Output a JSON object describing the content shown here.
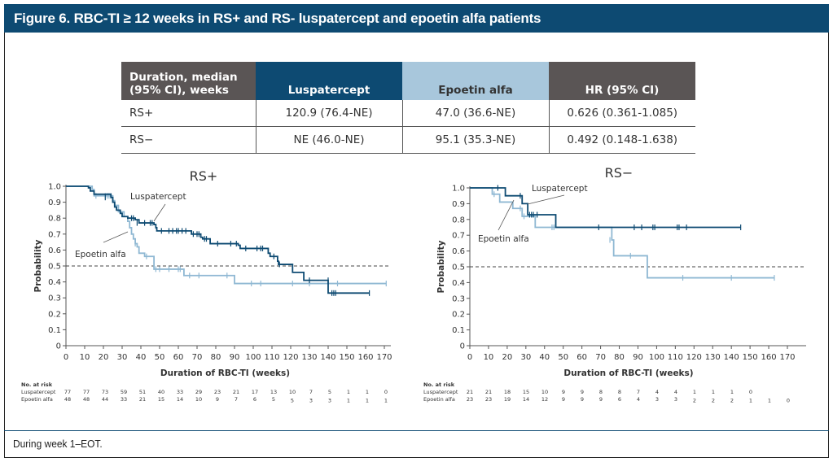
{
  "figure": {
    "title": "Figure 6. RBC-TI ≥ 12 weeks in RS+ and RS- luspatercept and epoetin alfa patients",
    "footnote": "During week 1–EOT."
  },
  "table": {
    "headers": [
      "Duration, median (95% CI), weeks",
      "Luspatercept",
      "Epoetin alfa",
      "HR (95% CI)"
    ],
    "header_colors": [
      "#5a5555",
      "#0d4a72",
      "#a8c7dc",
      "#5a5555"
    ],
    "rows": [
      [
        "RS+",
        "120.9 (76.4-NE)",
        "47.0 (36.6-NE)",
        "0.626 (0.361-1.085)"
      ],
      [
        "RS−",
        "NE (46.0-NE)",
        "95.1 (35.3-NE)",
        "0.492 (0.148-1.638)"
      ]
    ]
  },
  "colors": {
    "luspatercept": "#0d4a72",
    "epoetin": "#8fb8d3",
    "reference": "#444444",
    "axis": "#555555",
    "text": "#333333"
  },
  "chart_data": [
    {
      "type": "line",
      "subtype": "kaplan-meier",
      "title": "RS+",
      "xlabel": "Duration of RBC-TI (weeks)",
      "ylabel": "Probability",
      "xlim": [
        0,
        170
      ],
      "ylim": [
        0,
        1.0
      ],
      "x_ticks": [
        0,
        10,
        20,
        30,
        40,
        50,
        60,
        70,
        80,
        90,
        100,
        110,
        120,
        130,
        140,
        150,
        160,
        170
      ],
      "y_ticks": [
        0,
        0.1,
        0.2,
        0.3,
        0.4,
        0.5,
        0.6,
        0.7,
        0.8,
        0.9,
        1.0
      ],
      "y_tick_labels": [
        "0",
        "0.1",
        "0.2",
        "0.3",
        "0.4",
        "0.5",
        "0.6",
        "0.7",
        "0.8",
        "0.9",
        "1.0"
      ],
      "reference_line": 0.5,
      "annotations": [
        {
          "text": "Luspatercept",
          "series": "Luspatercept"
        },
        {
          "text": "Epoetin alfa",
          "series": "Epoetin alfa"
        }
      ],
      "series": [
        {
          "name": "Luspatercept",
          "steps": [
            [
              0,
              1.0
            ],
            [
              12,
              0.99
            ],
            [
              13,
              0.97
            ],
            [
              15,
              0.95
            ],
            [
              24,
              0.93
            ],
            [
              25,
              0.9
            ],
            [
              26,
              0.87
            ],
            [
              27,
              0.85
            ],
            [
              29,
              0.83
            ],
            [
              30,
              0.81
            ],
            [
              33,
              0.8
            ],
            [
              37,
              0.79
            ],
            [
              39,
              0.77
            ],
            [
              47,
              0.76
            ],
            [
              48,
              0.74
            ],
            [
              48.5,
              0.72
            ],
            [
              67,
              0.7
            ],
            [
              72,
              0.68
            ],
            [
              73,
              0.67
            ],
            [
              77,
              0.64
            ],
            [
              92,
              0.63
            ],
            [
              93,
              0.61
            ],
            [
              108,
              0.58
            ],
            [
              109,
              0.56
            ],
            [
              113,
              0.53
            ],
            [
              113.5,
              0.51
            ],
            [
              121,
              0.46
            ],
            [
              127,
              0.41
            ],
            [
              140,
              0.33
            ],
            [
              162,
              0.33
            ]
          ],
          "censors": [
            [
              21,
              0.93
            ],
            [
              35,
              0.8
            ],
            [
              36,
              0.8
            ],
            [
              38,
              0.77
            ],
            [
              42,
              0.77
            ],
            [
              45,
              0.77
            ],
            [
              46,
              0.77
            ],
            [
              51,
              0.72
            ],
            [
              55,
              0.72
            ],
            [
              57,
              0.72
            ],
            [
              59,
              0.72
            ],
            [
              60,
              0.72
            ],
            [
              62,
              0.72
            ],
            [
              64,
              0.72
            ],
            [
              68,
              0.7
            ],
            [
              70,
              0.7
            ],
            [
              71,
              0.7
            ],
            [
              74,
              0.67
            ],
            [
              75,
              0.67
            ],
            [
              81,
              0.64
            ],
            [
              88,
              0.64
            ],
            [
              91,
              0.64
            ],
            [
              96,
              0.61
            ],
            [
              102,
              0.61
            ],
            [
              104,
              0.61
            ],
            [
              105,
              0.61
            ],
            [
              111,
              0.56
            ],
            [
              114,
              0.51
            ],
            [
              130,
              0.41
            ],
            [
              140,
              0.41
            ],
            [
              142,
              0.33
            ],
            [
              143,
              0.33
            ],
            [
              144,
              0.33
            ],
            [
              162,
              0.33
            ]
          ]
        },
        {
          "name": "Epoetin alfa",
          "steps": [
            [
              0,
              1.0
            ],
            [
              14,
              0.98
            ],
            [
              15,
              0.94
            ],
            [
              25,
              0.91
            ],
            [
              26,
              0.88
            ],
            [
              28,
              0.84
            ],
            [
              31,
              0.81
            ],
            [
              33,
              0.78
            ],
            [
              34,
              0.74
            ],
            [
              35,
              0.7
            ],
            [
              36,
              0.67
            ],
            [
              37,
              0.64
            ],
            [
              38,
              0.62
            ],
            [
              39,
              0.58
            ],
            [
              42,
              0.56
            ],
            [
              47,
              0.48
            ],
            [
              63,
              0.44
            ],
            [
              90,
              0.39
            ],
            [
              171,
              0.39
            ]
          ],
          "censors": [
            [
              16,
              0.94
            ],
            [
              21,
              0.94
            ],
            [
              22,
              0.94
            ],
            [
              23,
              0.94
            ],
            [
              24,
              0.94
            ],
            [
              37,
              0.64
            ],
            [
              43,
              0.56
            ],
            [
              48,
              0.48
            ],
            [
              50,
              0.48
            ],
            [
              55,
              0.48
            ],
            [
              60,
              0.48
            ],
            [
              61,
              0.48
            ],
            [
              66,
              0.44
            ],
            [
              71,
              0.44
            ],
            [
              86,
              0.44
            ],
            [
              99,
              0.39
            ],
            [
              104,
              0.39
            ],
            [
              121,
              0.39
            ],
            [
              130,
              0.39
            ],
            [
              145,
              0.39
            ],
            [
              171,
              0.39
            ]
          ]
        }
      ],
      "at_risk": {
        "label": "No. at risk",
        "rows": [
          {
            "name": "Luspatercept",
            "values": [
              77,
              77,
              73,
              59,
              51,
              40,
              33,
              29,
              23,
              21,
              17,
              13,
              10,
              7,
              5,
              1,
              1,
              0
            ]
          },
          {
            "name": "Epoetin alfa",
            "values": [
              48,
              48,
              44,
              33,
              21,
              15,
              14,
              10,
              9,
              7,
              6,
              5,
              5,
              3,
              3,
              1,
              1,
              1
            ]
          }
        ]
      }
    },
    {
      "type": "line",
      "subtype": "kaplan-meier",
      "title": "RS−",
      "xlabel": "Duration of RBC-TI (weeks)",
      "ylabel": "Probability",
      "xlim": [
        0,
        170
      ],
      "ylim": [
        0,
        1.0
      ],
      "x_ticks": [
        0,
        10,
        20,
        30,
        40,
        50,
        60,
        70,
        80,
        90,
        100,
        110,
        120,
        130,
        140,
        150,
        160,
        170
      ],
      "y_ticks": [
        0,
        0.1,
        0.2,
        0.3,
        0.4,
        0.5,
        0.6,
        0.7,
        0.8,
        0.9,
        1.0
      ],
      "y_tick_labels": [
        "0",
        "0.1",
        "0.2",
        "0.3",
        "0.4",
        "0.5",
        "0.6",
        "0.7",
        "0.8",
        "0.9",
        "1.0"
      ],
      "reference_line": 0.5,
      "annotations": [
        {
          "text": "Luspatercept",
          "series": "Luspatercept"
        },
        {
          "text": "Epoetin alfa",
          "series": "Epoetin alfa"
        }
      ],
      "series": [
        {
          "name": "Luspatercept",
          "steps": [
            [
              0,
              1.0
            ],
            [
              19,
              0.95
            ],
            [
              28,
              0.9
            ],
            [
              31,
              0.83
            ],
            [
              46,
              0.75
            ],
            [
              145,
              0.75
            ]
          ],
          "censors": [
            [
              15,
              1.0
            ],
            [
              27,
              0.95
            ],
            [
              32,
              0.83
            ],
            [
              33,
              0.83
            ],
            [
              34,
              0.83
            ],
            [
              36,
              0.83
            ],
            [
              69,
              0.75
            ],
            [
              88,
              0.75
            ],
            [
              92,
              0.75
            ],
            [
              98,
              0.75
            ],
            [
              99,
              0.75
            ],
            [
              111,
              0.75
            ],
            [
              112,
              0.75
            ],
            [
              116,
              0.75
            ],
            [
              145,
              0.75
            ]
          ]
        },
        {
          "name": "Epoetin alfa",
          "steps": [
            [
              0,
              1.0
            ],
            [
              12,
              0.96
            ],
            [
              16,
              0.91
            ],
            [
              23,
              0.87
            ],
            [
              28,
              0.82
            ],
            [
              35,
              0.75
            ],
            [
              76,
              0.67
            ],
            [
              77,
              0.57
            ],
            [
              95,
              0.43
            ],
            [
              163,
              0.43
            ]
          ],
          "censors": [
            [
              13,
              0.96
            ],
            [
              27,
              0.87
            ],
            [
              29,
              0.82
            ],
            [
              44,
              0.75
            ],
            [
              45,
              0.75
            ],
            [
              75,
              0.67
            ],
            [
              86,
              0.57
            ],
            [
              114,
              0.43
            ],
            [
              140,
              0.43
            ],
            [
              163,
              0.43
            ]
          ]
        }
      ],
      "at_risk": {
        "label": "No. at risk",
        "rows": [
          {
            "name": "Luspatercept",
            "values": [
              21,
              21,
              18,
              15,
              10,
              9,
              9,
              8,
              8,
              7,
              4,
              4,
              1,
              1,
              1,
              0
            ]
          },
          {
            "name": "Epoetin alfa",
            "values": [
              23,
              23,
              19,
              14,
              12,
              9,
              9,
              9,
              6,
              4,
              3,
              3,
              2,
              2,
              2,
              1,
              1,
              0
            ]
          }
        ]
      }
    }
  ]
}
